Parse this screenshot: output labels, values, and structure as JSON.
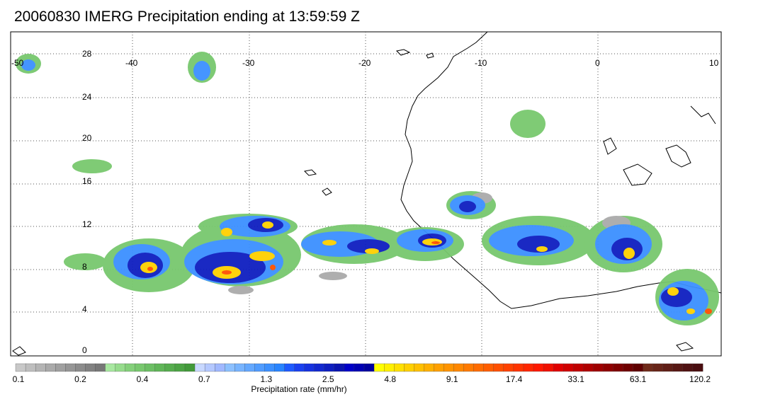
{
  "title": "20060830 IMERG Precipitation ending at 13:59:59 Z",
  "map": {
    "lat_labels": [
      "28",
      "24",
      "20",
      "16",
      "12",
      "8",
      "4",
      "0"
    ],
    "lon_labels": [
      "-50",
      "-40",
      "-30",
      "-20",
      "-10",
      "0",
      "10"
    ],
    "grid_style": "dotted",
    "coastline_color": "#000000"
  },
  "colorbar": {
    "title": "Precipitation rate (mm/hr)",
    "tick_labels": [
      "0.1",
      "0.2",
      "0.4",
      "0.7",
      "1.3",
      "2.5",
      "4.8",
      "9.1",
      "17.4",
      "33.1",
      "63.1",
      "120.2"
    ],
    "colors": [
      "#c8c8c8",
      "#bebebe",
      "#b4b4b4",
      "#aaaaaa",
      "#a0a0a0",
      "#969696",
      "#8c8c8c",
      "#828282",
      "#787878",
      "#a8e8a0",
      "#96dc8c",
      "#84d07a",
      "#78c86e",
      "#6cbf64",
      "#60b658",
      "#56ad4e",
      "#4ca444",
      "#429a3a",
      "#c8d8ff",
      "#b4c8ff",
      "#a0b8ff",
      "#8cc0ff",
      "#78b4ff",
      "#64a8ff",
      "#509cff",
      "#3c90ff",
      "#2884ff",
      "#1e5aff",
      "#1a40f0",
      "#1632e0",
      "#1228d0",
      "#0e1ec0",
      "#0a14b0",
      "#0000c8",
      "#0000b4",
      "#0000a0",
      "#ffff00",
      "#fff000",
      "#ffe000",
      "#ffd000",
      "#ffc000",
      "#ffb000",
      "#ffa000",
      "#ff9400",
      "#ff8800",
      "#ff7a00",
      "#ff6c00",
      "#ff5e00",
      "#ff5000",
      "#ff4200",
      "#ff3400",
      "#ff2600",
      "#ff1800",
      "#f01000",
      "#e00000",
      "#d00000",
      "#c00000",
      "#b00000",
      "#a00000",
      "#900000",
      "#800000",
      "#700000",
      "#600000",
      "#702a1a",
      "#682418",
      "#601e16",
      "#581814",
      "#501212",
      "#4a0e10"
    ]
  }
}
